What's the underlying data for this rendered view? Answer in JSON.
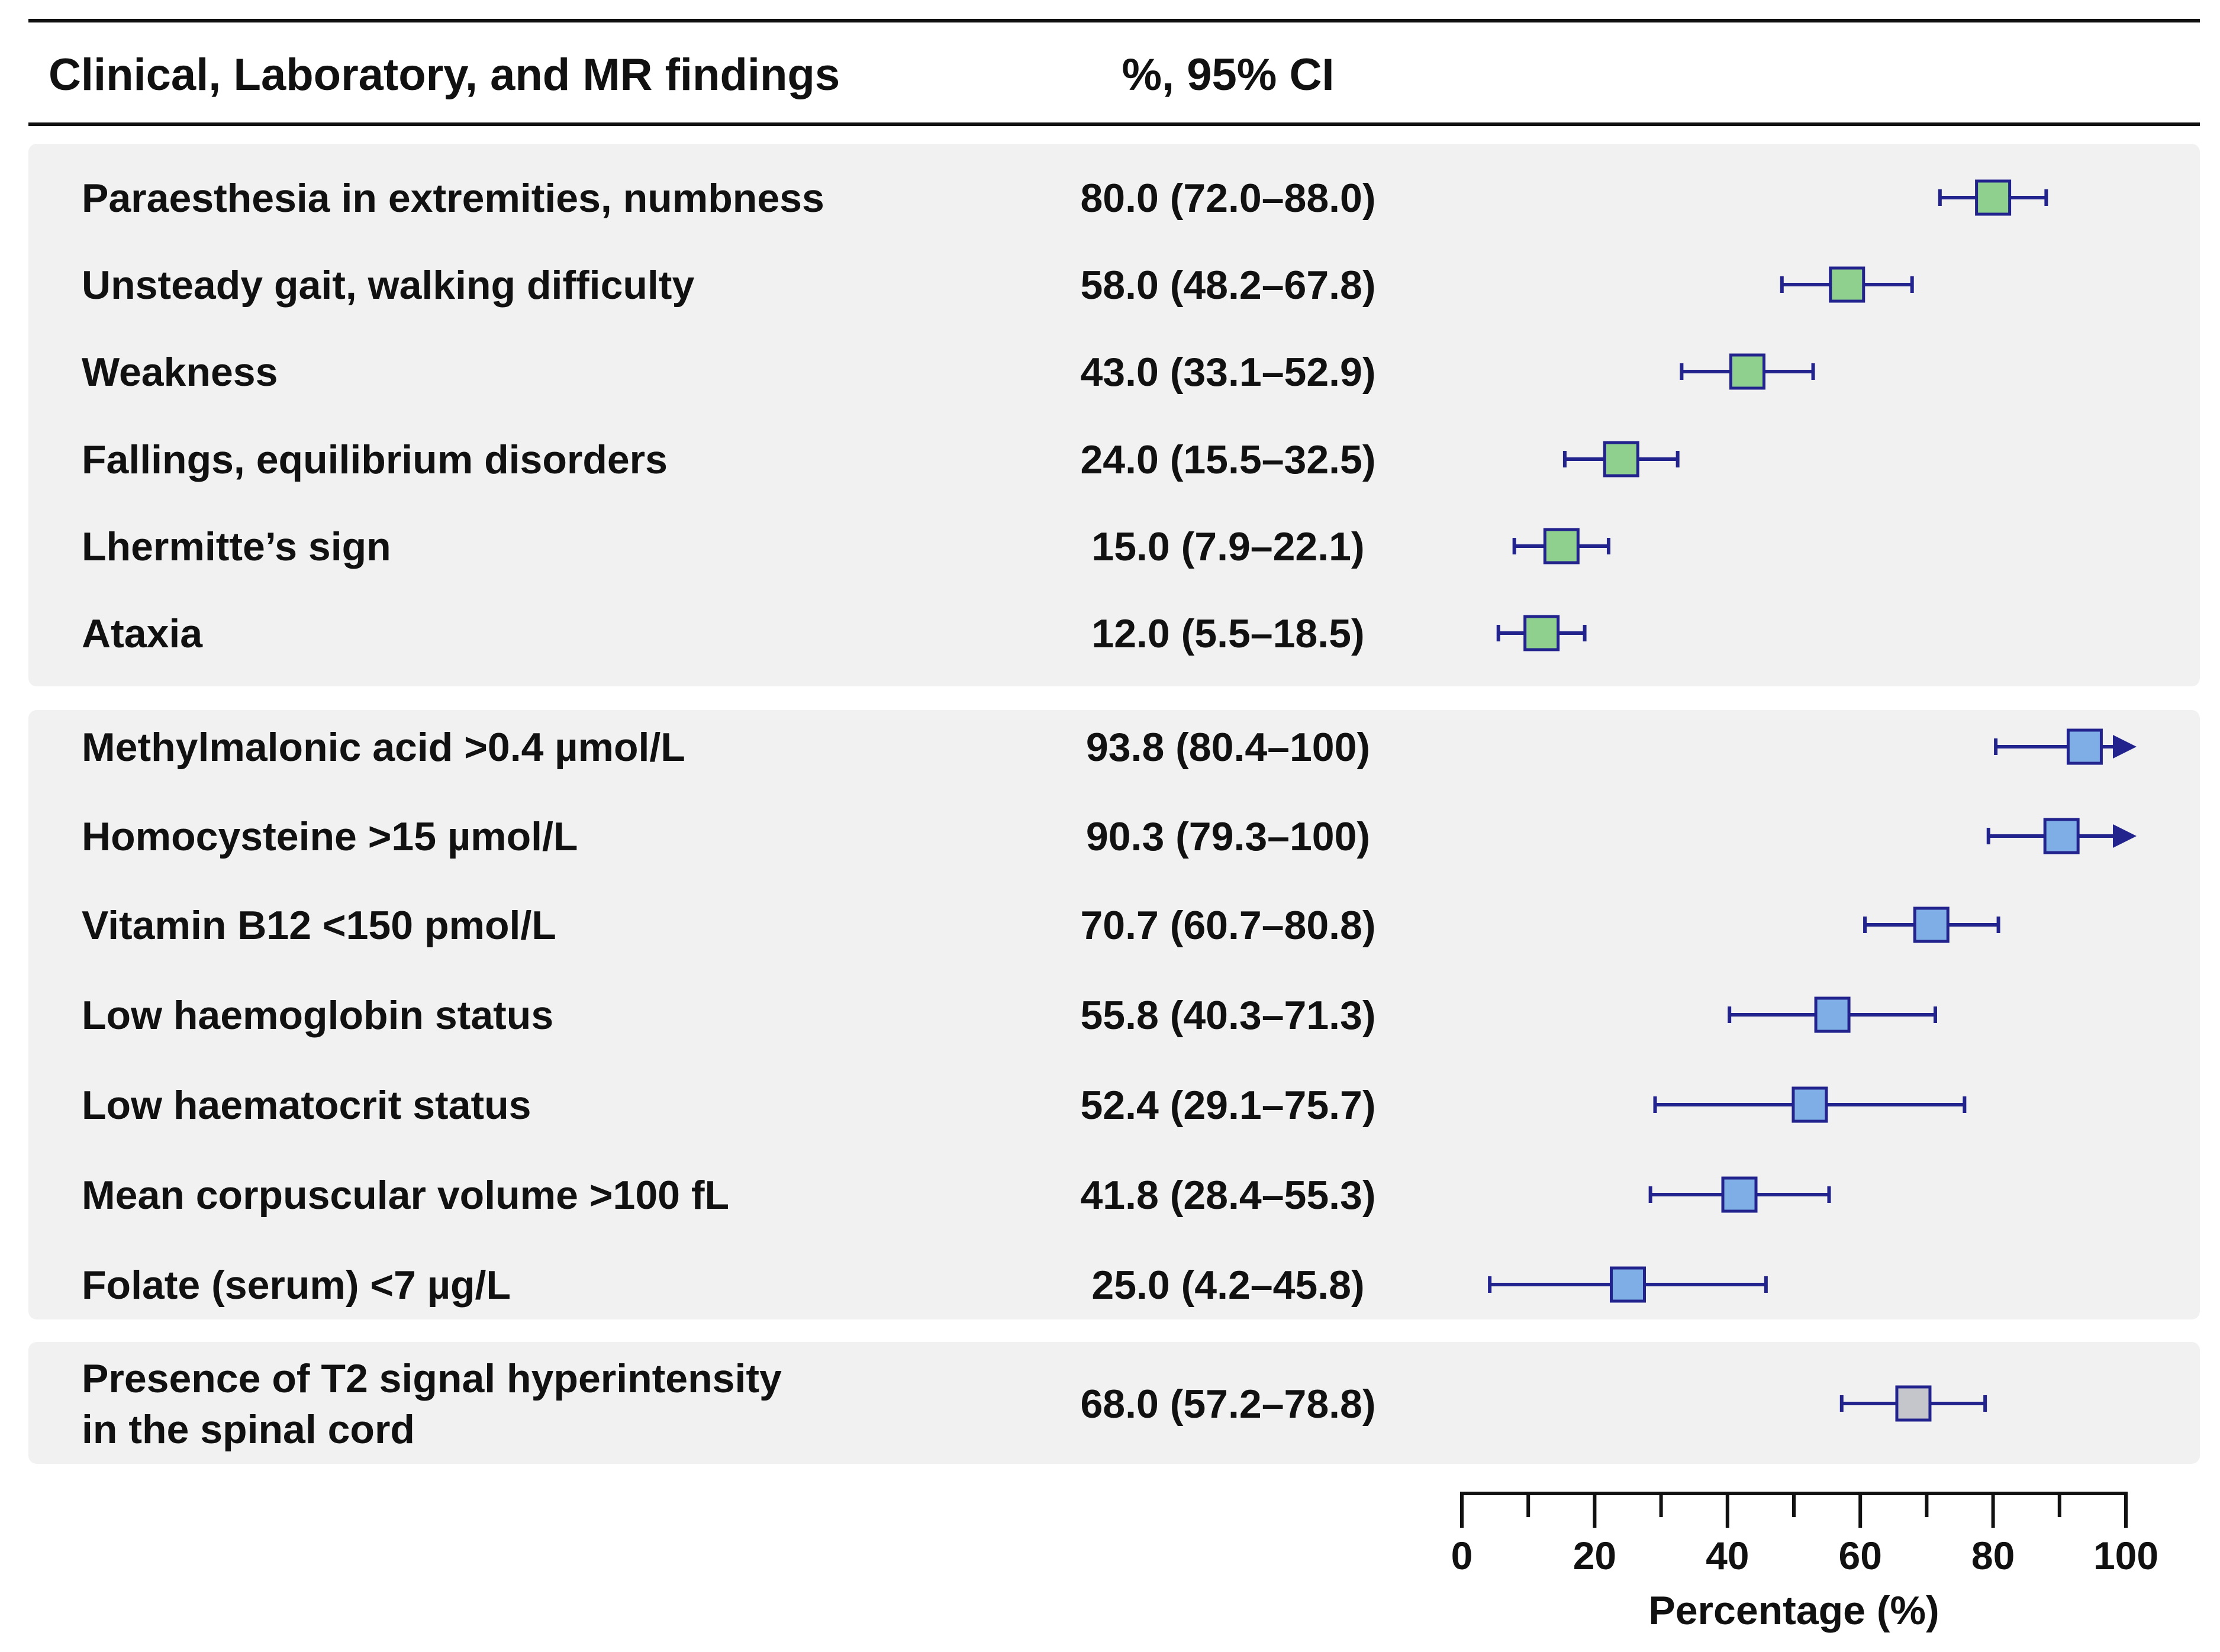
{
  "header": {
    "finding_col": "Clinical, Laboratory, and MR findings",
    "ci_col": "%, 95% CI"
  },
  "colors": {
    "clinical": "#8FD08F",
    "laboratory": "#7FAEE6",
    "mr": "#C4C6CC",
    "stroke": "#23238E",
    "panel": "#F1F1F1"
  },
  "chart_data": {
    "type": "forest",
    "xlabel": "Percentage (%)",
    "xlim": [
      0,
      100
    ],
    "xticks": [
      0,
      20,
      40,
      60,
      80,
      100
    ],
    "minor_ticks": [
      10,
      30,
      50,
      70,
      90
    ],
    "groups": [
      {
        "name": "clinical",
        "rows": [
          {
            "label": "Paraesthesia in extremities, numbness",
            "ci_text": "80.0 (72.0–88.0)",
            "value": 80.0,
            "low": 72.0,
            "high": 88.0,
            "arrow": false
          },
          {
            "label": "Unsteady gait, walking difficulty",
            "ci_text": "58.0 (48.2–67.8)",
            "value": 58.0,
            "low": 48.2,
            "high": 67.8,
            "arrow": false
          },
          {
            "label": "Weakness",
            "ci_text": "43.0 (33.1–52.9)",
            "value": 43.0,
            "low": 33.1,
            "high": 52.9,
            "arrow": false
          },
          {
            "label": "Fallings, equilibrium disorders",
            "ci_text": "24.0 (15.5–32.5)",
            "value": 24.0,
            "low": 15.5,
            "high": 32.5,
            "arrow": false
          },
          {
            "label": "Lhermitte’s sign",
            "ci_text": "15.0 (7.9–22.1)",
            "value": 15.0,
            "low": 7.9,
            "high": 22.1,
            "arrow": false
          },
          {
            "label": "Ataxia",
            "ci_text": "12.0 (5.5–18.5)",
            "value": 12.0,
            "low": 5.5,
            "high": 18.5,
            "arrow": false
          }
        ]
      },
      {
        "name": "laboratory",
        "rows": [
          {
            "label": "Methylmalonic acid >0.4 µmol/L",
            "ci_text": "93.8 (80.4–100)",
            "value": 93.8,
            "low": 80.4,
            "high": 100,
            "arrow": true
          },
          {
            "label": "Homocysteine >15 µmol/L",
            "ci_text": "90.3 (79.3–100)",
            "value": 90.3,
            "low": 79.3,
            "high": 100,
            "arrow": true
          },
          {
            "label": "Vitamin B12 <150 pmol/L",
            "ci_text": "70.7 (60.7–80.8)",
            "value": 70.7,
            "low": 60.7,
            "high": 80.8,
            "arrow": false
          },
          {
            "label": "Low haemoglobin status",
            "ci_text": "55.8 (40.3–71.3)",
            "value": 55.8,
            "low": 40.3,
            "high": 71.3,
            "arrow": false
          },
          {
            "label": "Low haematocrit status",
            "ci_text": "52.4 (29.1–75.7)",
            "value": 52.4,
            "low": 29.1,
            "high": 75.7,
            "arrow": false
          },
          {
            "label": "Mean corpuscular volume >100 fL",
            "ci_text": "41.8 (28.4–55.3)",
            "value": 41.8,
            "low": 28.4,
            "high": 55.3,
            "arrow": false
          },
          {
            "label": "Folate (serum) <7 µg/L",
            "ci_text": "25.0 (4.2–45.8)",
            "value": 25.0,
            "low": 4.2,
            "high": 45.8,
            "arrow": false
          }
        ]
      },
      {
        "name": "mr",
        "rows": [
          {
            "label": [
              "Presence of T2 signal hyperintensity",
              "in the spinal cord"
            ],
            "ci_text": "68.0 (57.2–78.8)",
            "value": 68.0,
            "low": 57.2,
            "high": 78.8,
            "arrow": false
          }
        ]
      }
    ]
  }
}
